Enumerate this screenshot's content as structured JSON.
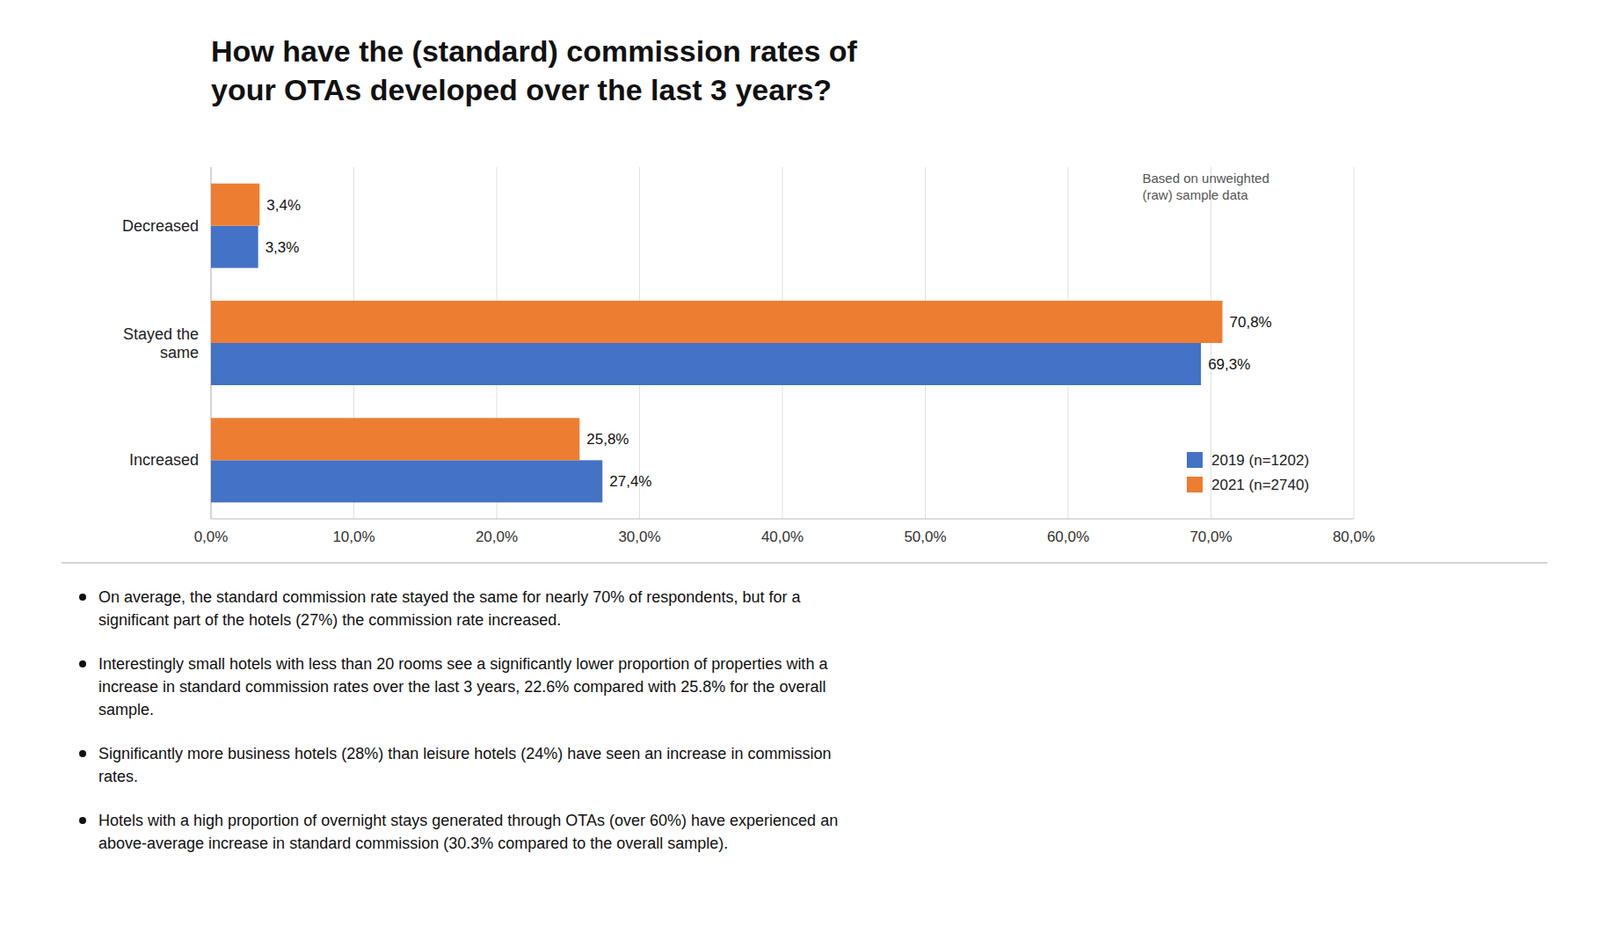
{
  "chart_data": {
    "type": "bar",
    "orientation": "horizontal",
    "title": "How have the (standard) commission rates of\nyour OTAs developed over the last 3 years?",
    "categories": [
      "Increased",
      "Stayed the\nsame",
      "Decreased"
    ],
    "series": [
      {
        "name": "2019 (n=1202)",
        "color": "#4472C4",
        "values": [
          27.4,
          69.3,
          3.3
        ],
        "value_labels": [
          "27,4%",
          "69,3%",
          "3,3%"
        ]
      },
      {
        "name": "2021 (n=2740)",
        "color": "#ED7D31",
        "values": [
          25.8,
          70.8,
          3.4
        ],
        "value_labels": [
          "25,8%",
          "70,8%",
          "3,4%"
        ]
      }
    ],
    "xlim": [
      0,
      80
    ],
    "xticks": [
      {
        "value": 0,
        "label": "0,0%"
      },
      {
        "value": 10,
        "label": "10,0%"
      },
      {
        "value": 20,
        "label": "20,0%"
      },
      {
        "value": 30,
        "label": "30,0%"
      },
      {
        "value": 40,
        "label": "40,0%"
      },
      {
        "value": 50,
        "label": "50,0%"
      },
      {
        "value": 60,
        "label": "60,0%"
      },
      {
        "value": 70,
        "label": "70,0%"
      },
      {
        "value": 80,
        "label": "80,0%"
      }
    ],
    "grid": true,
    "legend": "lower right",
    "data_labels": true,
    "annotations": [
      "Based on unweighted\n(raw) sample data"
    ],
    "bullet_points": [
      "On average, the standard commission rate stayed the same for nearly 70% of respondents, but for a\nsignificant part of the hotels (27%) the commission rate increased.",
      "Interestingly small hotels with less than 20 rooms see a significantly lower proportion of properties with a\nincrease in standard commission rates over the last 3 years, 22.6% compared with 25.8% for the overall\nsample.",
      "Significantly more business hotels (28%) than leisure hotels (24%) have seen an increase in commission\nrates.",
      "Hotels with a high proportion of overnight stays generated through OTAs (over 60%) have experienced an\nabove-average increase in standard commission (30.3% compared to the overall sample)."
    ]
  }
}
